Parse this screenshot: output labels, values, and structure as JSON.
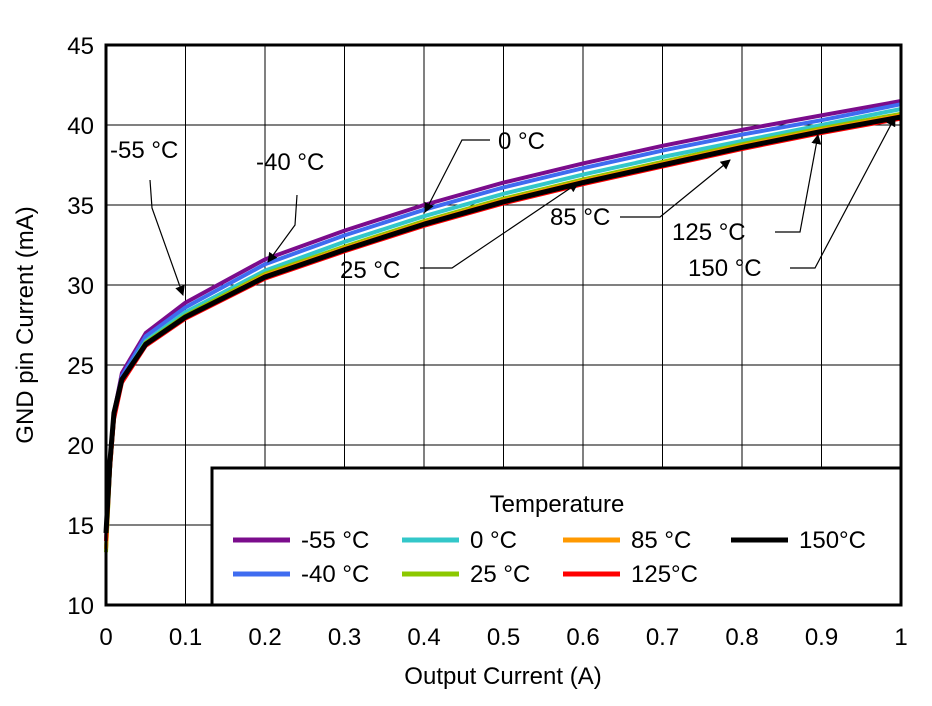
{
  "chart_data": {
    "type": "line",
    "title": "",
    "xlabel": "Output Current (A)",
    "ylabel": "GND pin Current (mA)",
    "xlim": [
      0,
      1
    ],
    "ylim": [
      10,
      45
    ],
    "xticks": [
      "0",
      "0.1",
      "0.2",
      "0.3",
      "0.4",
      "0.5",
      "0.6",
      "0.7",
      "0.8",
      "0.9",
      "1"
    ],
    "yticks": [
      "10",
      "15",
      "20",
      "25",
      "30",
      "35",
      "40",
      "45"
    ],
    "grid": true,
    "legend": {
      "title": "Temperature",
      "placement": "bottom-right"
    },
    "x": [
      0,
      0.005,
      0.01,
      0.02,
      0.05,
      0.1,
      0.2,
      0.3,
      0.4,
      0.5,
      0.6,
      0.7,
      0.8,
      0.9,
      1.0
    ],
    "series": [
      {
        "name": "-55 °C",
        "color": "#7B0C8C",
        "values": [
          14,
          19,
          22,
          24.5,
          27.0,
          28.9,
          31.6,
          33.4,
          35.0,
          36.4,
          37.6,
          38.7,
          39.7,
          40.6,
          41.5
        ]
      },
      {
        "name": "-40 °C",
        "color": "#3F6CF0",
        "values": [
          14,
          19,
          22,
          24.3,
          26.8,
          28.6,
          31.3,
          33.1,
          34.7,
          36.1,
          37.3,
          38.4,
          39.4,
          40.3,
          41.3
        ]
      },
      {
        "name": "0 °C",
        "color": "#33C7C9",
        "values": [
          13.5,
          18.5,
          21.8,
          24.1,
          26.5,
          28.3,
          30.9,
          32.7,
          34.3,
          35.7,
          36.9,
          38.0,
          39.0,
          40.0,
          41.0
        ]
      },
      {
        "name": "25 °C",
        "color": "#8CC800",
        "values": [
          13.3,
          18.5,
          21.7,
          24.0,
          26.4,
          28.1,
          30.7,
          32.4,
          34.0,
          35.4,
          36.6,
          37.7,
          38.8,
          39.8,
          40.7
        ]
      },
      {
        "name": "85 °C",
        "color": "#FF9900",
        "values": [
          13.5,
          18.5,
          21.7,
          24.0,
          26.3,
          28.0,
          30.6,
          32.3,
          33.9,
          35.3,
          36.5,
          37.6,
          38.7,
          39.7,
          40.6
        ]
      },
      {
        "name": "125°C",
        "color": "#FF0000",
        "values": [
          14,
          18.5,
          21.6,
          23.9,
          26.2,
          27.9,
          30.4,
          32.1,
          33.7,
          35.1,
          36.3,
          37.4,
          38.5,
          39.5,
          40.4
        ]
      },
      {
        "name": "150°C",
        "color": "#000000",
        "values": [
          14.5,
          19,
          22,
          24.1,
          26.3,
          28.0,
          30.5,
          32.2,
          33.8,
          35.2,
          36.4,
          37.5,
          38.6,
          39.6,
          40.5
        ]
      }
    ],
    "annotations": [
      "-55 °C",
      "-40 °C",
      "0 °C",
      "25 °C",
      "85 °C",
      "125 °C",
      "150 °C"
    ]
  }
}
